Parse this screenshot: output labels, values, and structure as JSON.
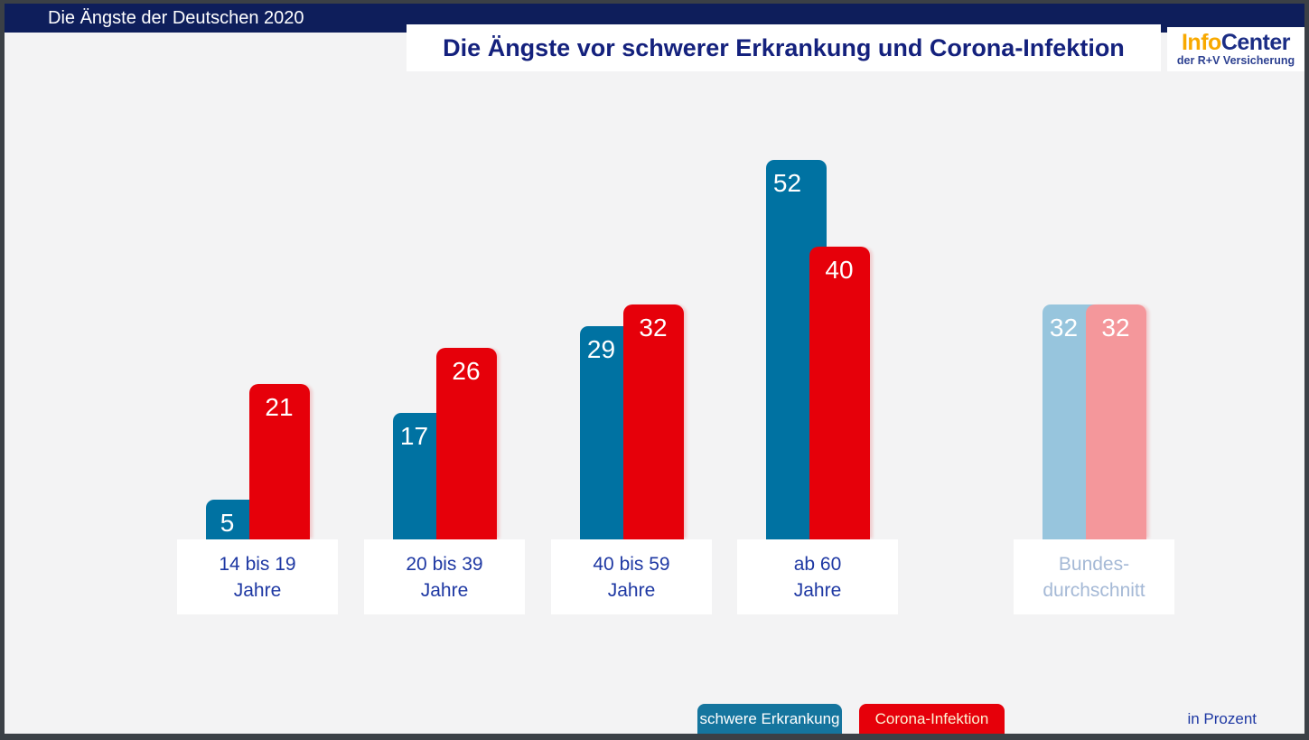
{
  "topbar": {
    "title": "Die Ängste der Deutschen 2020"
  },
  "header": {
    "title": "Die Ängste vor schwerer Erkrankung und Corona-Infektion"
  },
  "logo": {
    "info": "Info",
    "center": "Center",
    "subline": "der R+V Versicherung"
  },
  "footer": {
    "unit_label": "in Prozent"
  },
  "legend": [
    {
      "label": "schwere Erkrankung",
      "color": "#15759e",
      "text_color": "#ffffff"
    },
    {
      "label": "Corona-Infektion",
      "color": "#e6000a",
      "text_color": "#fcf3d4"
    }
  ],
  "colors": {
    "frame": "#3b4046",
    "background": "#f3f3f4",
    "topbar": "#0e1e5b",
    "title_text": "#14217d",
    "category_label": "#1e38a3",
    "muted_category_label": "#a5b9d6",
    "series_blue": "#0072a2",
    "series_red": "#e6000a",
    "muted_blue": "#97c5dd",
    "muted_red": "#f4979b",
    "value_text": "#ffffff"
  },
  "chart_data": {
    "type": "bar",
    "title": "Die Ängste vor schwerer Erkrankung und Corona-Infektion",
    "unit": "in Prozent",
    "categories": [
      "14 bis 19 Jahre",
      "20 bis 39 Jahre",
      "40 bis 59 Jahre",
      "ab 60 Jahre",
      "Bundesdurchschnitt"
    ],
    "category_lines": [
      [
        "14 bis 19",
        "Jahre"
      ],
      [
        "20 bis 39",
        "Jahre"
      ],
      [
        "40 bis 59",
        "Jahre"
      ],
      [
        "ab 60",
        "Jahre"
      ],
      [
        "Bundes-",
        "durchschnitt"
      ]
    ],
    "series": [
      {
        "name": "schwere Erkrankung",
        "values": [
          5,
          17,
          29,
          52,
          32
        ]
      },
      {
        "name": "Corona-Infektion",
        "values": [
          21,
          26,
          32,
          40,
          32
        ]
      }
    ],
    "muted_category_index": 4,
    "value_labels": true,
    "ylim": [
      0,
      55
    ],
    "grid": false,
    "legend_position": "bottom"
  }
}
